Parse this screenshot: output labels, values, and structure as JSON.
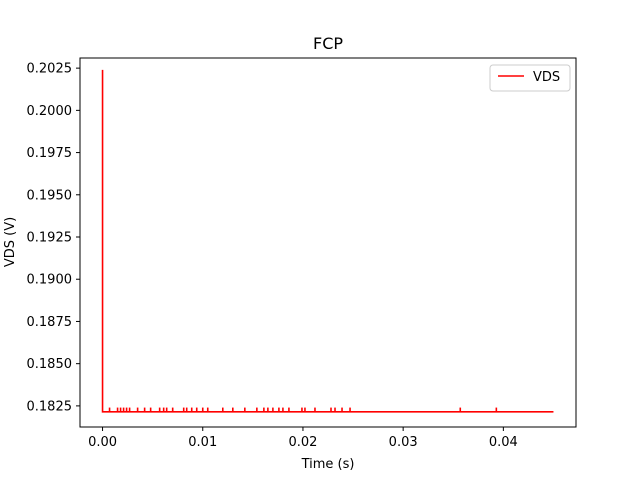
{
  "chart_data": {
    "type": "line",
    "title": "FCP",
    "xlabel": "Time (s)",
    "ylabel": "VDS (V)",
    "xlim": [
      -0.00225,
      0.04725
    ],
    "ylim": [
      0.18125,
      0.2031
    ],
    "xticks": [
      0.0,
      0.01,
      0.02,
      0.03,
      0.04
    ],
    "xtick_labels": [
      "0.00",
      "0.01",
      "0.02",
      "0.03",
      "0.04"
    ],
    "yticks": [
      0.1825,
      0.185,
      0.1875,
      0.19,
      0.1925,
      0.195,
      0.1975,
      0.2,
      0.2025
    ],
    "ytick_labels": [
      "0.1825",
      "0.1850",
      "0.1875",
      "0.1900",
      "0.1925",
      "0.1950",
      "0.1975",
      "0.2000",
      "0.2025"
    ],
    "grid": false,
    "legend_position": "top-right",
    "series": [
      {
        "name": "VDS",
        "color": "#ff0000",
        "x": [
          0.0,
          0.0,
          0.045
        ],
        "y": [
          0.2024,
          0.18215,
          0.18215
        ],
        "spikes_x": [
          0.0007,
          0.0015,
          0.0018,
          0.0021,
          0.0024,
          0.0027,
          0.0035,
          0.0042,
          0.0048,
          0.0057,
          0.0061,
          0.0064,
          0.007,
          0.0081,
          0.0084,
          0.0089,
          0.0094,
          0.01,
          0.0105,
          0.012,
          0.013,
          0.0142,
          0.0154,
          0.0161,
          0.0165,
          0.017,
          0.0176,
          0.018,
          0.0186,
          0.0199,
          0.0202,
          0.0212,
          0.0228,
          0.0232,
          0.0239,
          0.0247,
          0.0357,
          0.0393
        ],
        "spike_height": 0.00025
      }
    ]
  }
}
